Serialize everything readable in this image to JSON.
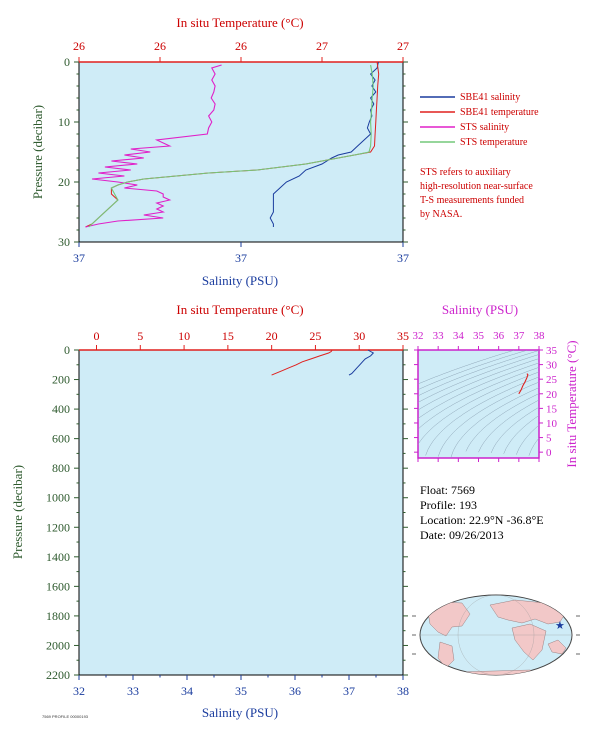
{
  "colors": {
    "plot_bg": "#cfecf7",
    "salinity": "#1a3c9e",
    "temperature": "#e0201e",
    "sts_salinity": "#e020c8",
    "sts_temperature": "#74c87a",
    "pressure_axis": "#2e5a2e",
    "inset": "#cc22cc",
    "land": "#f2c8c8",
    "ocean": "#cfecf7"
  },
  "legend": [
    {
      "label": "SBE41 salinity",
      "color": "#1a3c9e"
    },
    {
      "label": "SBE41 temperature",
      "color": "#e0201e"
    },
    {
      "label": "STS salinity",
      "color": "#e020c8"
    },
    {
      "label": "STS temperature",
      "color": "#74c87a"
    }
  ],
  "note": [
    "STS refers to auxiliary",
    "high-resolution near-surface",
    "T-S measurements funded",
    "by NASA."
  ],
  "info": {
    "float": "Float:  7569",
    "profile": "Profile:  193",
    "location": "Location:  22.9°N  -36.8°E",
    "date": "Date:  09/26/2013"
  },
  "footer_code": "7569 PROFILE 00000193",
  "chart_data": [
    {
      "type": "line",
      "id": "top",
      "title_top": "In situ Temperature (°C)",
      "xlabel": "Salinity (PSU)",
      "ylabel": "Pressure (decibar)",
      "temp_range": [
        26.0,
        27.0
      ],
      "temp_ticks": [
        26.0,
        26.25,
        26.5,
        26.75,
        27.0
      ],
      "temp_tick_labels": [
        "26",
        "26",
        "26",
        "27",
        "27"
      ],
      "sal_range": [
        36.9,
        37.4
      ],
      "sal_ticks": [
        36.9,
        37.15,
        37.4
      ],
      "sal_tick_labels": [
        "37",
        "37",
        "37"
      ],
      "pressure_range": [
        0,
        30
      ],
      "pressure_ticks": [
        0,
        10,
        20,
        30
      ],
      "series": [
        {
          "name": "SBE41 salinity",
          "axis": "sal",
          "p": [
            0,
            1,
            2,
            3,
            4,
            5,
            6,
            7,
            8,
            9,
            10,
            11,
            12,
            13,
            14,
            15,
            15.5,
            16,
            17,
            18,
            19,
            20,
            21,
            22,
            23,
            24,
            25,
            26,
            27,
            27.5
          ],
          "v": [
            37.362,
            37.36,
            37.35,
            37.357,
            37.352,
            37.358,
            37.35,
            37.355,
            37.35,
            37.352,
            37.348,
            37.345,
            37.35,
            37.34,
            37.33,
            37.32,
            37.3,
            37.29,
            37.275,
            37.25,
            37.24,
            37.22,
            37.21,
            37.2,
            37.2,
            37.2,
            37.2,
            37.195,
            37.2,
            37.2
          ]
        },
        {
          "name": "SBE41 temperature",
          "axis": "temp",
          "p": [
            0,
            2,
            4,
            6,
            8,
            10,
            12,
            14,
            15,
            15.5,
            16,
            17,
            18,
            18.5,
            19,
            19.5,
            20,
            20.5,
            21,
            22,
            23,
            24,
            25,
            26,
            27,
            27.5
          ],
          "v": [
            26.92,
            26.925,
            26.922,
            26.92,
            26.918,
            26.916,
            26.914,
            26.912,
            26.9,
            26.85,
            26.8,
            26.7,
            26.55,
            26.4,
            26.3,
            26.2,
            26.15,
            26.12,
            26.1,
            26.1,
            26.12,
            26.1,
            26.08,
            26.06,
            26.04,
            26.02
          ]
        },
        {
          "name": "STS salinity",
          "axis": "sal",
          "p": [
            0.5,
            1,
            2,
            3,
            4,
            5,
            6,
            7,
            8,
            9,
            10,
            11,
            12,
            13,
            14,
            14.5,
            15,
            15.5,
            16,
            16.5,
            17,
            17.5,
            18,
            18.5,
            19,
            19.5,
            20,
            20.5,
            21,
            21.5,
            22,
            22.5,
            23,
            23.5,
            24,
            24.5,
            25,
            25.5,
            26,
            26.5,
            27,
            27.5
          ],
          "v": [
            37.12,
            37.105,
            37.11,
            37.105,
            37.11,
            37.108,
            37.104,
            37.11,
            37.108,
            37.1,
            37.105,
            37.1,
            37.098,
            37.02,
            37.04,
            36.98,
            37.01,
            36.97,
            37.0,
            36.95,
            36.99,
            36.94,
            36.98,
            36.93,
            36.97,
            36.92,
            36.96,
            36.99,
            36.97,
            37.02,
            37.03,
            37.03,
            37.04,
            37.02,
            37.03,
            37.02,
            37.03,
            37.0,
            37.03,
            36.96,
            36.93,
            36.91
          ]
        },
        {
          "name": "STS temperature",
          "axis": "temp",
          "p": [
            0.5,
            2,
            4,
            6,
            8,
            10,
            12,
            14,
            15,
            15.5,
            16,
            17,
            18,
            18.5,
            19,
            19.5,
            20,
            20.5,
            21,
            22,
            23,
            24,
            25,
            26,
            27,
            27.5
          ],
          "v": [
            26.9,
            26.905,
            26.908,
            26.905,
            26.903,
            26.9,
            26.902,
            26.9,
            26.895,
            26.85,
            26.8,
            26.7,
            26.55,
            26.4,
            26.3,
            26.2,
            26.15,
            26.12,
            26.1,
            26.11,
            26.12,
            26.1,
            26.08,
            26.06,
            26.04,
            26.03
          ]
        }
      ]
    },
    {
      "type": "line",
      "id": "bottom",
      "title_top": "In situ Temperature (°C)",
      "xlabel": "Salinity (PSU)",
      "ylabel": "Pressure (decibar)",
      "temp_range": [
        -2,
        35
      ],
      "temp_ticks": [
        0,
        5,
        10,
        15,
        20,
        25,
        30,
        35
      ],
      "sal_range": [
        32,
        38
      ],
      "sal_ticks": [
        32,
        33,
        34,
        35,
        36,
        37,
        38
      ],
      "pressure_range": [
        0,
        2200
      ],
      "pressure_ticks": [
        0,
        200,
        400,
        600,
        800,
        1000,
        1200,
        1400,
        1600,
        1800,
        2000,
        2200
      ],
      "series": [
        {
          "name": "temperature",
          "axis": "temp",
          "p": [
            0,
            10,
            20,
            40,
            60,
            80,
            100,
            120,
            140,
            160,
            170
          ],
          "v": [
            26.9,
            26.8,
            26.5,
            25.5,
            24.5,
            23.5,
            22.8,
            22.0,
            21.2,
            20.4,
            20.0
          ]
        },
        {
          "name": "salinity",
          "axis": "sal",
          "p": [
            0,
            10,
            20,
            40,
            60,
            80,
            100,
            120,
            140,
            160,
            170
          ],
          "v": [
            37.35,
            37.4,
            37.45,
            37.4,
            37.3,
            37.25,
            37.2,
            37.15,
            37.1,
            37.05,
            37.0
          ]
        }
      ]
    },
    {
      "type": "scatter",
      "id": "ts-inset",
      "title_top": "Salinity (PSU)",
      "ylabel": "In situ Temperature (°C)",
      "sal_range": [
        32,
        38
      ],
      "sal_ticks": [
        32,
        33,
        34,
        35,
        36,
        37,
        38
      ],
      "temp_range": [
        -2,
        35
      ],
      "temp_ticks": [
        0,
        5,
        10,
        15,
        20,
        25,
        30,
        35
      ],
      "series": [
        {
          "name": "T-S",
          "s": [
            37.4,
            37.45,
            37.4,
            37.3,
            37.2,
            37.1,
            37.0
          ],
          "t": [
            26.9,
            26.5,
            25.5,
            24.0,
            22.8,
            21.2,
            20.0
          ]
        }
      ]
    }
  ]
}
